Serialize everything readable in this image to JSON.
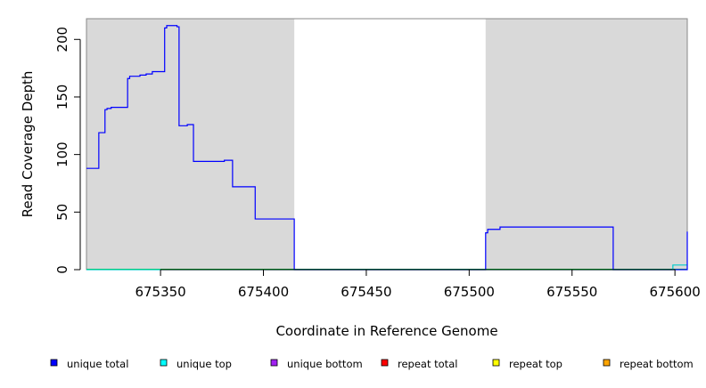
{
  "chart_data": {
    "type": "line",
    "title": "",
    "xlabel": "Coordinate in Reference Genome",
    "ylabel": "Read Coverage Depth",
    "xlim": [
      675314,
      675606
    ],
    "ylim": [
      0,
      218
    ],
    "x_ticks": [
      675350,
      675400,
      675450,
      675500,
      675550,
      675600
    ],
    "y_ticks": [
      0,
      50,
      100,
      150,
      200
    ],
    "x_tick_labels": [
      "675350",
      "675400",
      "675450",
      "675500",
      "675550",
      "675600"
    ],
    "y_tick_labels": [
      "0",
      "50",
      "100",
      "150",
      "200"
    ],
    "grid": false,
    "shaded_regions": [
      {
        "x_start": 675314,
        "x_end": 675415,
        "color": "#d9d9d9"
      },
      {
        "x_start": 675508,
        "x_end": 675606,
        "color": "#d9d9d9"
      }
    ],
    "series": [
      {
        "name": "unique total",
        "color": "#0000ff",
        "x": [
          675314,
          675320,
          675320,
          675323,
          675323,
          675324,
          675324,
          675326,
          675326,
          675334,
          675334,
          675335,
          675335,
          675340,
          675340,
          675343,
          675343,
          675346,
          675346,
          675352,
          675352,
          675353,
          675353,
          675358,
          675358,
          675359,
          675359,
          675363,
          675363,
          675366,
          675366,
          675381,
          675381,
          675385,
          675385,
          675396,
          675396,
          675415,
          675415,
          675508,
          675508,
          675509,
          675509,
          675515,
          675515,
          675570,
          675570,
          675606,
          675606
        ],
        "y": [
          88,
          88,
          119,
          119,
          139,
          139,
          140,
          140,
          141,
          141,
          166,
          166,
          168,
          168,
          169,
          169,
          170,
          170,
          172,
          172,
          210,
          210,
          212,
          212,
          211,
          211,
          125,
          125,
          126,
          126,
          94,
          94,
          95,
          95,
          72,
          72,
          44,
          44,
          0,
          0,
          32,
          32,
          35,
          35,
          37,
          37,
          0,
          0,
          33
        ]
      },
      {
        "name": "unique top",
        "color": "#00cccc",
        "x": [
          675314,
          675599,
          675599,
          675606
        ],
        "y": [
          0,
          0,
          4,
          4
        ]
      },
      {
        "name": "unique bottom",
        "color": "#a020f0",
        "x": [
          675314,
          675606
        ],
        "y": [
          0,
          0
        ]
      },
      {
        "name": "repeat total",
        "color": "#ff0000",
        "x": [
          675314,
          675606
        ],
        "y": [
          0,
          0
        ]
      },
      {
        "name": "repeat top",
        "color": "#ffff00",
        "x": [
          675314,
          675606
        ],
        "y": [
          0,
          0
        ]
      },
      {
        "name": "repeat bottom",
        "color": "#ffa500",
        "x": [
          675314,
          675606
        ],
        "y": [
          0,
          0
        ]
      }
    ],
    "legend": {
      "placement": "bottom",
      "items": [
        {
          "label": "unique total",
          "color": "#0000ff"
        },
        {
          "label": "unique top",
          "color": "#00ffff"
        },
        {
          "label": "unique bottom",
          "color": "#a020f0"
        },
        {
          "label": "repeat total",
          "color": "#ff0000"
        },
        {
          "label": "repeat top",
          "color": "#ffff00"
        },
        {
          "label": "repeat bottom",
          "color": "#ffa500"
        }
      ]
    },
    "baseline_color": "#00cc00"
  }
}
